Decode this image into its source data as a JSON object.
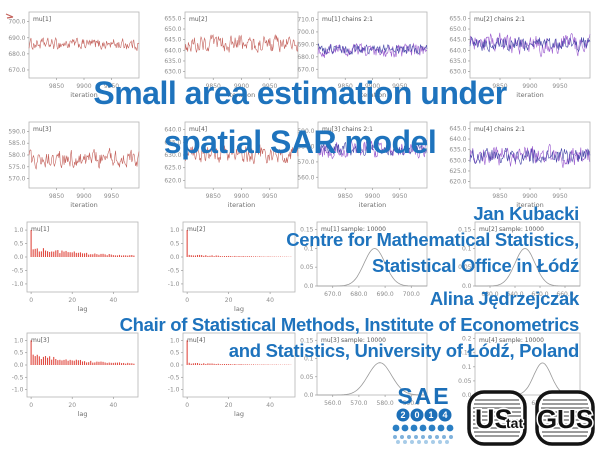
{
  "accent_color": "#1e73bd",
  "title": {
    "line1": "Small area estimation under",
    "line2": "spatial SAR model"
  },
  "authors": [
    {
      "name": "Jan Kubacki",
      "affiliation": [
        "Centre for Mathematical Statistics,",
        "Statistical Office in Łódź"
      ]
    },
    {
      "name": "Alina Jędrzejczak",
      "affiliation": [
        "Chair of Statistical Methods, Institute of Econometrics",
        "and Statistics, University of Łódź, Poland"
      ]
    }
  ],
  "logos": [
    {
      "id": "sae-2014-conference",
      "word": "SAE",
      "digits": [
        "2",
        "0",
        "1",
        "4"
      ]
    },
    {
      "id": "statistical-office-lodz",
      "big": "US",
      "small": "tat"
    },
    {
      "id": "central-statistical-office-poland",
      "label": "GUS"
    }
  ],
  "chart_data": [
    {
      "id": "mu1-history",
      "type": "line",
      "title": "mu[1]",
      "ylim": [
        665,
        706
      ],
      "yticks": [
        "700.0",
        "690.0",
        "680.0",
        "670.0"
      ],
      "xlim": [
        9800,
        10000
      ],
      "xticks": [
        "9850",
        "9900",
        "9950"
      ],
      "xlabel": "iteration",
      "series": [
        {
          "name": "chain 1",
          "color": "#c4625c",
          "mean": 686,
          "sd": 3
        }
      ]
    },
    {
      "id": "mu2-history",
      "type": "line",
      "title": "mu[2]",
      "ylim": [
        627,
        658
      ],
      "yticks": [
        "655.0",
        "650.0",
        "645.0",
        "640.0",
        "635.0",
        "630.0"
      ],
      "xlim": [
        9800,
        10000
      ],
      "xticks": [
        "9850",
        "9900",
        "9950"
      ],
      "xlabel": "iteration",
      "series": [
        {
          "name": "chain 1",
          "color": "#c4625c",
          "mean": 643,
          "sd": 3.5
        }
      ]
    },
    {
      "id": "mu1-chains-2-1",
      "type": "line",
      "title": "mu[1] chains 2:1",
      "ylim": [
        663,
        716
      ],
      "yticks": [
        "710.0",
        "700.0",
        "690.0",
        "680.0",
        "670.0"
      ],
      "xlim": [
        9800,
        10000
      ],
      "xticks": [
        "9850",
        "9900",
        "9950"
      ],
      "xlabel": "iteration",
      "series": [
        {
          "name": "chain 2",
          "color": "#9a5ace",
          "mean": 685,
          "sd": 4.5
        },
        {
          "name": "chain 1",
          "color": "#4747a8",
          "mean": 686,
          "sd": 3.5
        }
      ]
    },
    {
      "id": "mu2-chains-2-1",
      "type": "line",
      "title": "mu[2] chains 2:1",
      "ylim": [
        627,
        658
      ],
      "yticks": [
        "655.0",
        "650.0",
        "645.0",
        "640.0",
        "635.0",
        "630.0"
      ],
      "xlim": [
        9800,
        10000
      ],
      "xticks": [
        "9850",
        "9900",
        "9950"
      ],
      "xlabel": "iteration",
      "series": [
        {
          "name": "chain 2",
          "color": "#9a5ace",
          "mean": 643,
          "sd": 4
        },
        {
          "name": "chain 1",
          "color": "#4747a8",
          "mean": 643,
          "sd": 3
        }
      ]
    },
    {
      "id": "mu3-history",
      "type": "line",
      "title": "mu[3]",
      "ylim": [
        566,
        594
      ],
      "yticks": [
        "590.0",
        "585.0",
        "580.0",
        "575.0",
        "570.0"
      ],
      "xlim": [
        9800,
        10000
      ],
      "xticks": [
        "9850",
        "9900",
        "9950"
      ],
      "xlabel": "iteration",
      "series": [
        {
          "name": "chain 1",
          "color": "#c4625c",
          "mean": 578.5,
          "sd": 3.2
        }
      ]
    },
    {
      "id": "mu4-history",
      "type": "line",
      "title": "mu[4]",
      "ylim": [
        617,
        643
      ],
      "yticks": [
        "640.0",
        "635.0",
        "630.0",
        "625.0",
        "620.0"
      ],
      "xlim": [
        9800,
        10000
      ],
      "xticks": [
        "9850",
        "9900",
        "9950"
      ],
      "xlabel": "iteration",
      "series": [
        {
          "name": "chain 1",
          "color": "#c4625c",
          "mean": 630.5,
          "sd": 3
        }
      ]
    },
    {
      "id": "mu3-chains-2-1",
      "type": "line",
      "title": "mu[3] chains 2:1",
      "ylim": [
        553,
        596
      ],
      "yticks": [
        "590.0",
        "580.0",
        "570.0",
        "560.0"
      ],
      "xlim": [
        9800,
        10000
      ],
      "xticks": [
        "9850",
        "9900",
        "9950"
      ],
      "xlabel": "iteration",
      "series": [
        {
          "name": "chain 2",
          "color": "#9a5ace",
          "mean": 578,
          "sd": 4.5
        },
        {
          "name": "chain 1",
          "color": "#4747a8",
          "mean": 578,
          "sd": 3.5
        }
      ]
    },
    {
      "id": "mu4-chains-2-1",
      "type": "line",
      "title": "mu[4] chains 2:1",
      "ylim": [
        617,
        648
      ],
      "yticks": [
        "645.0",
        "640.0",
        "635.0",
        "630.0",
        "625.0",
        "620.0"
      ],
      "xlim": [
        9800,
        10000
      ],
      "xticks": [
        "9850",
        "9900",
        "9950"
      ],
      "xlabel": "iteration",
      "series": [
        {
          "name": "chain 2",
          "color": "#9a5ace",
          "mean": 632,
          "sd": 4
        },
        {
          "name": "chain 1",
          "color": "#4747a8",
          "mean": 632,
          "sd": 3
        }
      ]
    },
    {
      "id": "mu1-autocorrelation",
      "type": "bar",
      "title": "mu[1]",
      "ylim": [
        -1.3,
        1.3
      ],
      "yticks": [
        "1.0",
        "0.5",
        "0.0",
        "-0.5",
        "-1.0"
      ],
      "xlim": [
        -2,
        52
      ],
      "xticks": [
        "0",
        "20",
        "40"
      ],
      "xlabel": "lag",
      "color": "#e04b42",
      "lag0": 1.0,
      "base": 0.32,
      "decay": 30
    },
    {
      "id": "mu2-autocorrelation",
      "type": "bar",
      "title": "mu[2]",
      "ylim": [
        -1.3,
        1.3
      ],
      "yticks": [
        "1.0",
        "0.5",
        "0.0",
        "-0.5",
        "-1.0"
      ],
      "xlim": [
        -2,
        52
      ],
      "xticks": [
        "0",
        "20",
        "40"
      ],
      "xlabel": "lag",
      "color": "#e04b42",
      "lag0": 1.0,
      "base": 0.08,
      "decay": 25
    },
    {
      "id": "mu1-density",
      "type": "density",
      "title": "mu[1] sample: 10000",
      "ylim": [
        0,
        0.17
      ],
      "yticks": [
        "0.15",
        "0.1",
        "0.05",
        "0.0"
      ],
      "xlim": [
        664,
        706
      ],
      "xticks": [
        "670.0",
        "680.0",
        "690.0",
        "700.0"
      ],
      "center": 686,
      "sd": 4,
      "color": "#9a9a9a"
    },
    {
      "id": "mu2-density",
      "type": "density",
      "title": "mu[2] sample: 10000",
      "ylim": [
        0,
        0.17
      ],
      "yticks": [
        "0.15",
        "0.1",
        "0.05",
        "0.0"
      ],
      "xlim": [
        624,
        666
      ],
      "xticks": [
        "630.0",
        "640.0",
        "650.0",
        "660.0"
      ],
      "center": 644,
      "sd": 4,
      "color": "#9a9a9a"
    },
    {
      "id": "mu3-autocorrelation",
      "type": "bar",
      "title": "mu[3]",
      "ylim": [
        -1.3,
        1.3
      ],
      "yticks": [
        "1.0",
        "0.5",
        "0.0",
        "-0.5",
        "-1.0"
      ],
      "xlim": [
        -2,
        52
      ],
      "xticks": [
        "0",
        "20",
        "40"
      ],
      "xlabel": "lag",
      "color": "#e04b42",
      "lag0": 1.0,
      "base": 0.38,
      "decay": 28
    },
    {
      "id": "mu4-autocorrelation",
      "type": "bar",
      "title": "mu[4]",
      "ylim": [
        -1.3,
        1.3
      ],
      "yticks": [
        "1.0",
        "0.5",
        "0.0",
        "-0.5",
        "-1.0"
      ],
      "xlim": [
        -2,
        52
      ],
      "xticks": [
        "0",
        "20",
        "40"
      ],
      "xlabel": "lag",
      "color": "#e04b42",
      "lag0": 1.0,
      "base": 0.08,
      "decay": 25
    },
    {
      "id": "mu3-density",
      "type": "density",
      "title": "mu[3] sample: 10000",
      "ylim": [
        0,
        0.17
      ],
      "yticks": [
        "0.15",
        "0.1",
        "0.05",
        "0.0"
      ],
      "xlim": [
        554,
        596
      ],
      "xticks": [
        "560.0",
        "570.0",
        "580.0",
        "590.0"
      ],
      "center": 578,
      "sd": 4.5,
      "color": "#9a9a9a"
    },
    {
      "id": "mu4-density",
      "type": "density",
      "title": "mu[4] sample: 10000",
      "ylim": [
        0,
        0.22
      ],
      "yticks": [
        "0.2",
        "0.15",
        "0.1",
        "0.05",
        "0.0"
      ],
      "xlim": [
        604,
        646
      ],
      "xticks": [
        "610.0",
        "620.0",
        "630.0",
        "640.0"
      ],
      "center": 631,
      "sd": 3.5,
      "color": "#9a9a9a"
    }
  ]
}
